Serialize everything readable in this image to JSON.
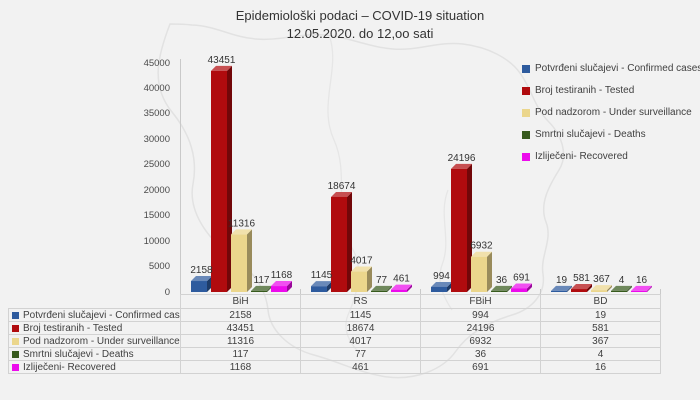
{
  "title": {
    "line1": "Epidemiološki podaci – COVID-19 situation",
    "line2": "12.05.2020. do 12,oo sati"
  },
  "colors": {
    "background": "#f2f2f2",
    "map_outline": "#e2e2e2",
    "axis_line": "#c9c9c9",
    "text": "#3a3a3a"
  },
  "chart_data": {
    "type": "bar",
    "style": "3d-clustered-column",
    "title": "Epidemiološki podaci – COVID-19 situation 12.05.2020. do 12,oo sati",
    "categories": [
      "BiH",
      "RS",
      "FBiH",
      "BD"
    ],
    "series": [
      {
        "name": "Potvrđeni slučajevi - Confirmed cases",
        "color": "#2E5B9E",
        "values": [
          2158,
          1145,
          994,
          19
        ]
      },
      {
        "name": "Broj testiranih - Tested",
        "color": "#B00B0E",
        "values": [
          43451,
          18674,
          24196,
          581
        ]
      },
      {
        "name": "Pod nadzorom - Under surveillance",
        "color": "#EBD68C",
        "values": [
          11316,
          4017,
          6932,
          367
        ]
      },
      {
        "name": "Smrtni slučajevi - Deaths",
        "color": "#375A1D",
        "values": [
          117,
          77,
          36,
          4
        ]
      },
      {
        "name": "Izliječeni- Recovered",
        "color": "#EC0BEC",
        "values": [
          1168,
          461,
          691,
          16
        ]
      }
    ],
    "xlabel": "",
    "ylabel": "",
    "ylim": [
      0,
      45000
    ],
    "ytick_step": 5000,
    "grid": false,
    "legend_position": "right",
    "data_labels": true,
    "data_table_shown": true
  }
}
